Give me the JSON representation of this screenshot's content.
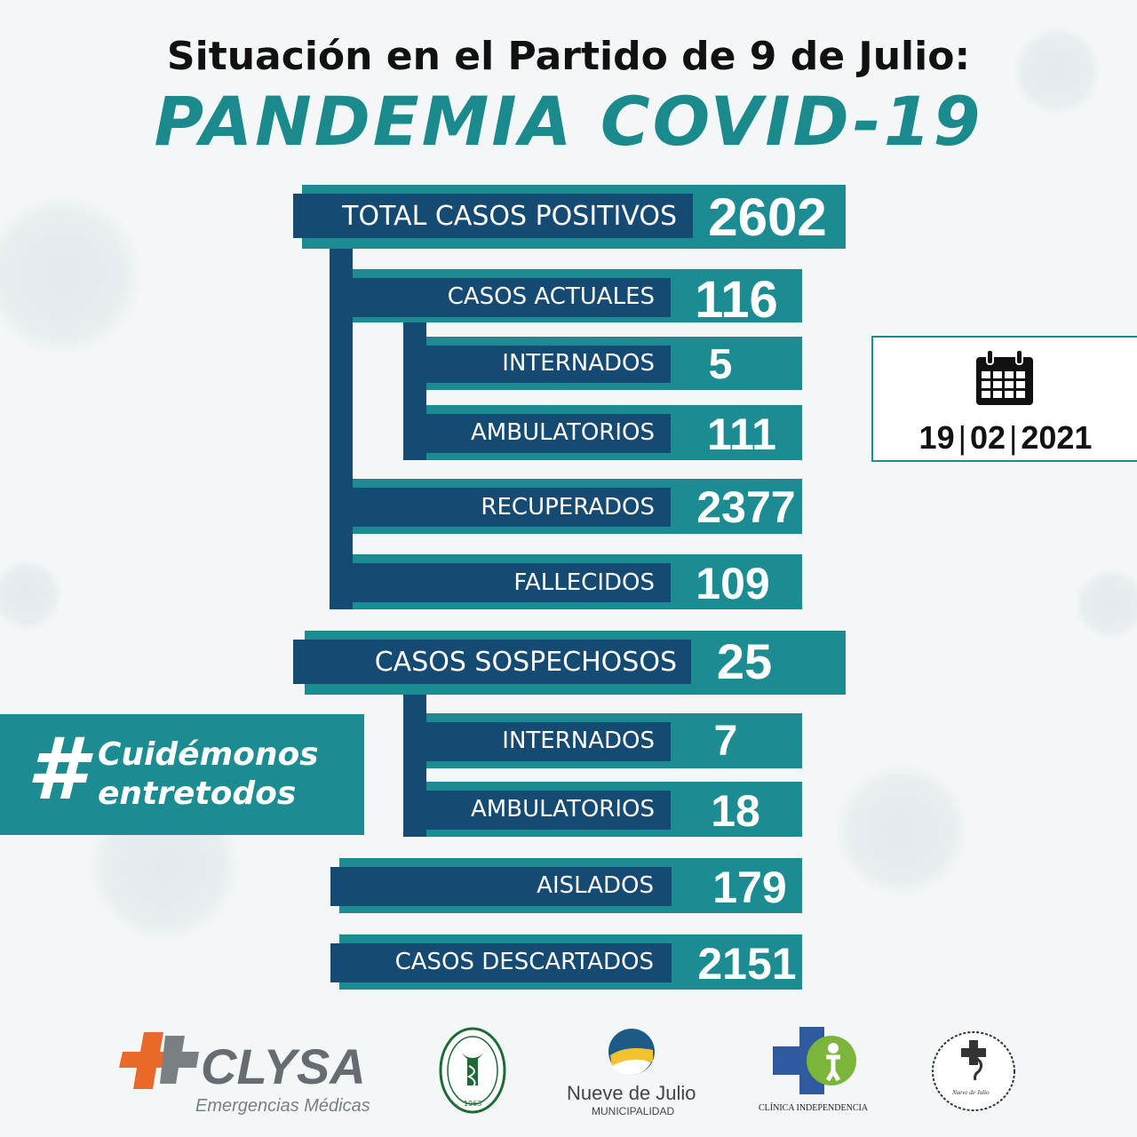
{
  "header": {
    "title": "Situación en el Partido de 9 de Julio:",
    "subtitle": "PANDEMIA COVID-19"
  },
  "stats": {
    "total_positivos": {
      "label": "TOTAL CASOS POSITIVOS",
      "value": "2602"
    },
    "casos_actuales": {
      "label": "CASOS ACTUALES",
      "value": "116"
    },
    "actuales_internados": {
      "label": "INTERNADOS",
      "value": "5"
    },
    "actuales_ambulatorios": {
      "label": "AMBULATORIOS",
      "value": "111"
    },
    "recuperados": {
      "label": "RECUPERADOS",
      "value": "2377"
    },
    "fallecidos": {
      "label": "FALLECIDOS",
      "value": "109"
    },
    "sospechosos": {
      "label": "CASOS SOSPECHOSOS",
      "value": "25"
    },
    "sospechosos_internados": {
      "label": "INTERNADOS",
      "value": "7"
    },
    "sospechosos_ambulatorios": {
      "label": "AMBULATORIOS",
      "value": "18"
    },
    "aislados": {
      "label": "AISLADOS",
      "value": "179"
    },
    "descartados": {
      "label": "CASOS DESCARTADOS",
      "value": "2151"
    }
  },
  "date": {
    "day": "19",
    "month": "02",
    "year": "2021",
    "icon": "calendar-icon"
  },
  "hashtag": {
    "symbol": "#",
    "line1": "Cuidémonos",
    "line2": "entretodos"
  },
  "logos": {
    "clysa": {
      "name": "CLYSA",
      "tagline": "Emergencias Médicas"
    },
    "circulo_medico": {
      "text": "CÍRCULO MÉDICO DE 9 DE JULIO",
      "year": "1963"
    },
    "municipalidad": {
      "name": "Nueve de Julio",
      "sub": "MUNICIPALIDAD"
    },
    "clinica": {
      "name": "CLÍNICA INDEPENDENCIA"
    },
    "seal": {
      "text": "Nueve de Julio"
    }
  },
  "colors": {
    "teal": "#1b8c91",
    "navy": "#154a72",
    "title_teal": "#1a8a8c"
  }
}
